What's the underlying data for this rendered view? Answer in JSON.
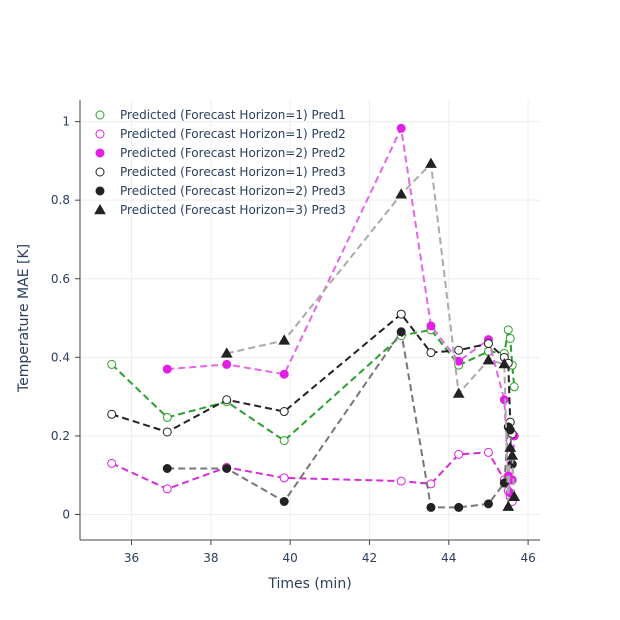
{
  "chart_data": {
    "type": "scatter",
    "title": "",
    "xlabel": "Times (min)",
    "ylabel": "Temperature MAE [K]",
    "xlim": [
      34.7,
      46.3
    ],
    "ylim": [
      -0.065,
      1.055
    ],
    "xticks": [
      36,
      38,
      40,
      42,
      44,
      46
    ],
    "yticks": [
      0,
      0.2,
      0.4,
      0.6,
      0.8,
      1
    ],
    "grid": true,
    "legend_position": "top-left",
    "series": [
      {
        "name": "Predicted (Forecast Horizon=1) Pred1",
        "marker": "circle-open",
        "color": "#2ca02c",
        "line": "#2ca02c",
        "x": [
          35.5,
          36.9,
          38.4,
          39.85,
          42.8,
          43.55,
          44.25,
          45.0,
          45.4,
          45.5,
          45.55,
          45.6,
          45.65
        ],
        "y": [
          0.382,
          0.247,
          0.287,
          0.188,
          0.455,
          0.47,
          0.38,
          0.415,
          0.41,
          0.47,
          0.448,
          0.38,
          0.325
        ]
      },
      {
        "name": "Predicted (Forecast Horizon=1) Pred2",
        "marker": "circle-open",
        "color": "#e11fe5",
        "line": "#d42dd6",
        "x": [
          35.5,
          36.9,
          38.4,
          39.85,
          42.8,
          43.55,
          44.25,
          45.0,
          45.4,
          45.5,
          45.55,
          45.6
        ],
        "y": [
          0.13,
          0.065,
          0.12,
          0.093,
          0.085,
          0.078,
          0.153,
          0.158,
          0.088,
          0.06,
          0.045,
          0.033
        ]
      },
      {
        "name": "Predicted (Forecast Horizon=2) Pred2",
        "marker": "circle",
        "color": "#e11fe5",
        "line": "#e566e8",
        "x": [
          36.9,
          38.4,
          39.85,
          42.8,
          43.55,
          44.25,
          45.0,
          45.4,
          45.5,
          45.55,
          45.6,
          45.65
        ],
        "y": [
          0.37,
          0.382,
          0.357,
          0.983,
          0.48,
          0.39,
          0.445,
          0.292,
          0.098,
          0.055,
          0.088,
          0.2
        ]
      },
      {
        "name": "Predicted (Forecast Horizon=1) Pred3",
        "marker": "circle-open",
        "color": "#222222",
        "line": "#222222",
        "x": [
          35.5,
          36.9,
          38.4,
          39.85,
          42.8,
          43.55,
          44.25,
          45.0,
          45.4,
          45.5,
          45.55,
          45.6
        ],
        "y": [
          0.255,
          0.21,
          0.292,
          0.262,
          0.51,
          0.412,
          0.418,
          0.435,
          0.4,
          0.385,
          0.235,
          0.205
        ]
      },
      {
        "name": "Predicted (Forecast Horizon=2) Pred3",
        "marker": "circle",
        "color": "#222222",
        "line": "#777777",
        "x": [
          36.9,
          38.4,
          39.85,
          42.8,
          43.55,
          44.25,
          45.0,
          45.4,
          45.5,
          45.55,
          45.6
        ],
        "y": [
          0.117,
          0.117,
          0.033,
          0.465,
          0.018,
          0.018,
          0.027,
          0.08,
          0.223,
          0.215,
          0.128
        ]
      },
      {
        "name": "Predicted (Forecast Horizon=3) Pred3",
        "marker": "triangle",
        "color": "#222222",
        "line": "#aaaaaa",
        "x": [
          38.4,
          39.85,
          42.8,
          43.55,
          44.25,
          45.0,
          45.4,
          45.5,
          45.55,
          45.6,
          45.65
        ],
        "y": [
          0.41,
          0.443,
          0.815,
          0.893,
          0.308,
          0.393,
          0.383,
          0.02,
          0.17,
          0.15,
          0.045
        ]
      }
    ]
  }
}
